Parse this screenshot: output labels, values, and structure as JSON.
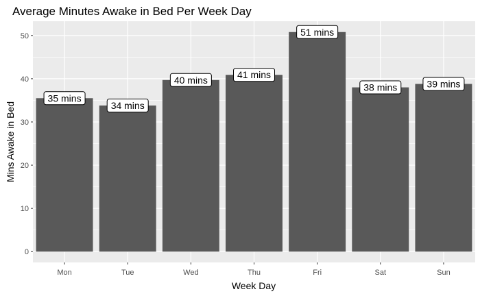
{
  "chart_data": {
    "type": "bar",
    "title": "Average Minutes Awake in Bed Per Week Day",
    "xlabel": "Week Day",
    "ylabel": "Mins Awake in Bed",
    "categories": [
      "Mon",
      "Tue",
      "Wed",
      "Thu",
      "Fri",
      "Sat",
      "Sun"
    ],
    "values": [
      35.5,
      33.8,
      39.7,
      40.9,
      50.8,
      38.0,
      38.8
    ],
    "data_labels": [
      "35 mins",
      "34 mins",
      "40 mins",
      "41 mins",
      "51 mins",
      "38 mins",
      "39 mins"
    ],
    "y_ticks": [
      "0",
      "10",
      "20",
      "30",
      "40",
      "50"
    ],
    "ylim": [
      -2.5,
      53.3
    ],
    "grid": true,
    "colors": {
      "bar": "#595959",
      "panel": "#ebebeb",
      "gridline": "#ffffff"
    }
  }
}
